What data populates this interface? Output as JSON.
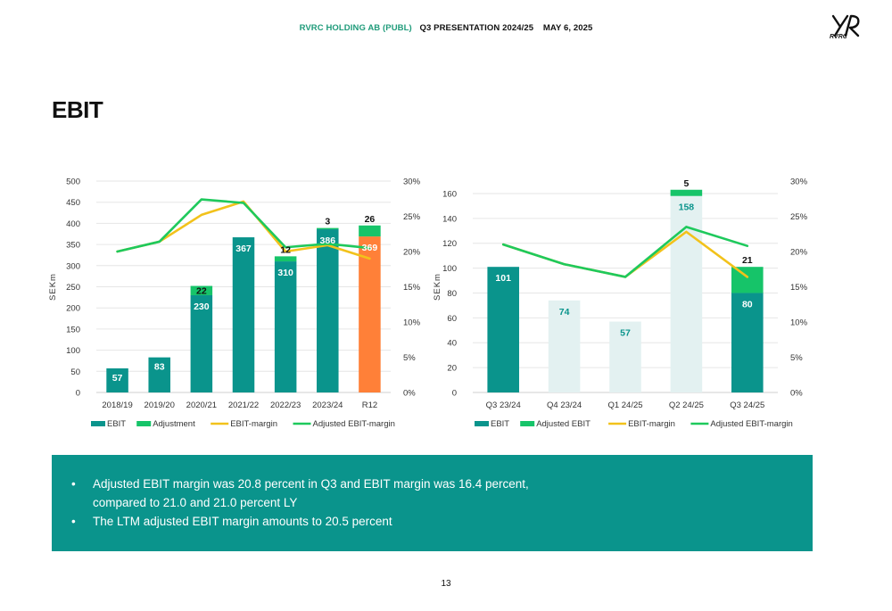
{
  "header": {
    "company": "RVRC HOLDING AB (PUBL)",
    "presentation": "Q3 PRESENTATION 2024/25",
    "date": "MAY 6, 2025"
  },
  "logo": {
    "text": "RVRC"
  },
  "page_title": "EBIT",
  "colors": {
    "ebit": "#0a948c",
    "adjustment": "#16c469",
    "r12": "#ff8038",
    "light_bar": "#e3f1f1",
    "ebit_margin": "#f2c21b",
    "adjusted_margin": "#1ec95c"
  },
  "chart_data": [
    {
      "type": "bar",
      "categories": [
        "2018/19",
        "2019/20",
        "2020/21",
        "2021/22",
        "2022/23",
        "2023/24",
        "R12"
      ],
      "series": [
        {
          "name": "EBIT",
          "values": [
            57,
            83,
            230,
            367,
            310,
            386,
            369
          ],
          "labels": [
            "57",
            "83",
            "230",
            "367",
            "310",
            "386",
            "369"
          ]
        },
        {
          "name": "Adjustment",
          "values": [
            0,
            0,
            22,
            0,
            12,
            3,
            26
          ],
          "labels": [
            "",
            "",
            "22",
            "",
            "12",
            "3",
            "26"
          ]
        }
      ],
      "lines": [
        {
          "name": "EBIT-margin",
          "values": [
            20.0,
            21.4,
            25.2,
            27.1,
            20.0,
            20.9,
            19.0
          ]
        },
        {
          "name": "Adjusted EBIT-margin",
          "values": [
            20.0,
            21.4,
            27.4,
            26.9,
            20.6,
            21.1,
            20.5
          ]
        }
      ],
      "ylabel": "SEKm",
      "ylim": [
        0,
        500
      ],
      "yticks": [
        "0",
        "50",
        "100",
        "150",
        "200",
        "250",
        "300",
        "350",
        "400",
        "450",
        "500"
      ],
      "y2lim": [
        0,
        30
      ],
      "y2ticks": [
        "0%",
        "5%",
        "10%",
        "15%",
        "20%",
        "25%",
        "30%"
      ],
      "grid": true,
      "legend": [
        "EBIT",
        "Adjustment",
        "EBIT-margin",
        "Adjusted EBIT-margin"
      ],
      "legend_position": "bottom"
    },
    {
      "type": "bar",
      "categories": [
        "Q3 23/24",
        "Q4 23/24",
        "Q1 24/25",
        "Q2 24/25",
        "Q3 24/25"
      ],
      "series": [
        {
          "name": "EBIT",
          "values": [
            101,
            74,
            57,
            158,
            80
          ],
          "labels": [
            "101",
            "74",
            "57",
            "158",
            "80"
          ]
        },
        {
          "name": "Adjusted EBIT",
          "values": [
            0,
            0,
            0,
            5,
            21
          ],
          "labels": [
            "",
            "",
            "",
            "5",
            "21"
          ]
        }
      ],
      "highlighted": [
        true,
        false,
        false,
        false,
        true
      ],
      "lines": [
        {
          "name": "EBIT-margin",
          "values": [
            21.0,
            18.2,
            16.4,
            22.8,
            16.4
          ]
        },
        {
          "name": "Adjusted EBIT-margin",
          "values": [
            21.0,
            18.2,
            16.4,
            23.5,
            20.8
          ]
        }
      ],
      "ylabel": "SEKm",
      "ylim": [
        0,
        170
      ],
      "yticks": [
        "0",
        "20",
        "40",
        "60",
        "80",
        "100",
        "120",
        "140",
        "160"
      ],
      "y2lim": [
        0,
        30
      ],
      "y2ticks": [
        "0%",
        "5%",
        "10%",
        "15%",
        "20%",
        "25%",
        "30%"
      ],
      "grid": true,
      "legend": [
        "EBIT",
        "Adjusted EBIT",
        "EBIT-margin",
        "Adjusted EBIT-margin"
      ],
      "legend_position": "bottom"
    }
  ],
  "info_box": {
    "bullet": "•",
    "items": [
      "Adjusted EBIT margin was 20.8 percent in Q3 and EBIT margin was 16.4 percent,",
      "compared to 21.0 and 21.0 percent LY",
      "The LTM adjusted EBIT margin amounts to 20.5 percent"
    ]
  },
  "page_number": "13"
}
